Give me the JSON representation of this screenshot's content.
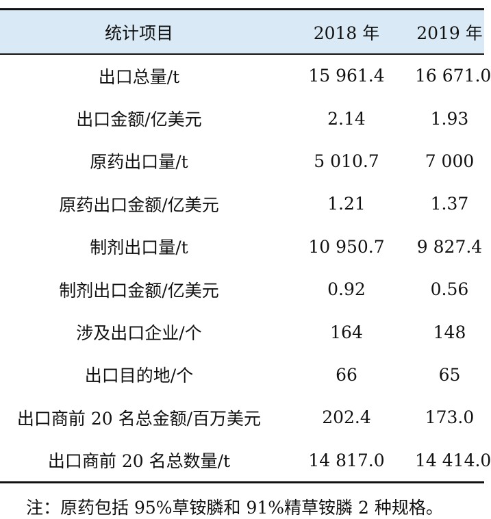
{
  "table": {
    "headers": [
      "统计项目",
      "2018 年",
      "2019 年"
    ],
    "rows": [
      [
        "出口总量/t",
        "15 961.4",
        "16 671.0"
      ],
      [
        "出口金额/亿美元",
        "2.14",
        "1.93"
      ],
      [
        "原药出口量/t",
        "5 010.7",
        "7 000"
      ],
      [
        "原药出口金额/亿美元",
        "1.21",
        "1.37"
      ],
      [
        "制剂出口量/t",
        "10 950.7",
        "9 827.4"
      ],
      [
        "制剂出口金额/亿美元",
        "0.92",
        "0.56"
      ],
      [
        "涉及出口企业/个",
        "164",
        "148"
      ],
      [
        "出口目的地/个",
        "66",
        "65"
      ],
      [
        "出口商前 20 名总金额/百万美元",
        "202.4",
        "173.0"
      ],
      [
        "出口商前 20 名总数量/t",
        "14 817.0",
        "14 414.0"
      ]
    ]
  },
  "note": "注：原药包括 95%草铵膦和 91%精草铵膦 2 种规格。",
  "colors": {
    "header_bg": "#d9eaf6",
    "rules": "#111111"
  }
}
